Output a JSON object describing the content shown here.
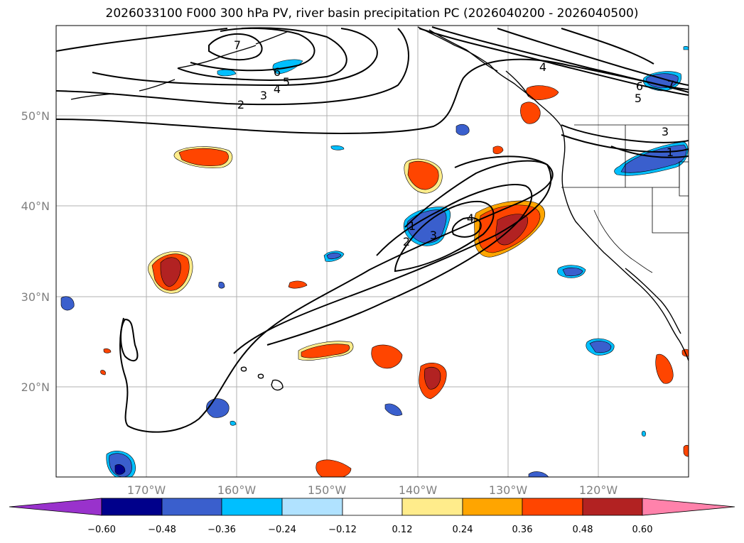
{
  "title": "2026033100 F000 300 hPa PV, river basin precipitation PC (2026040200 - 2026040500)",
  "map": {
    "projection": "plate-carree",
    "lon_range": [
      -180,
      -110
    ],
    "lat_range": [
      10,
      60
    ],
    "gridlines": true,
    "lat_labels": [
      "50°N",
      "40°N",
      "30°N",
      "20°N"
    ],
    "lon_labels": [
      "170°W",
      "160°W",
      "150°W",
      "140°W",
      "130°W",
      "120°W"
    ],
    "coastlines": true,
    "state_borders": true
  },
  "contour_levels": [
    "1",
    "2",
    "3",
    "4",
    "5",
    "6",
    "7"
  ],
  "colorbar": {
    "extend": "both",
    "ticks": [
      "−0.60",
      "−0.48",
      "−0.36",
      "−0.24",
      "−0.12",
      "0.12",
      "0.24",
      "0.36",
      "0.48",
      "0.60"
    ],
    "colors": [
      "#9932cc",
      "#00008b",
      "#3a5fcd",
      "#00bfff",
      "#b0e2ff",
      "#ffffff",
      "#ffec8b",
      "#ffa500",
      "#ff4500",
      "#b22222",
      "#ff82ab"
    ]
  }
}
